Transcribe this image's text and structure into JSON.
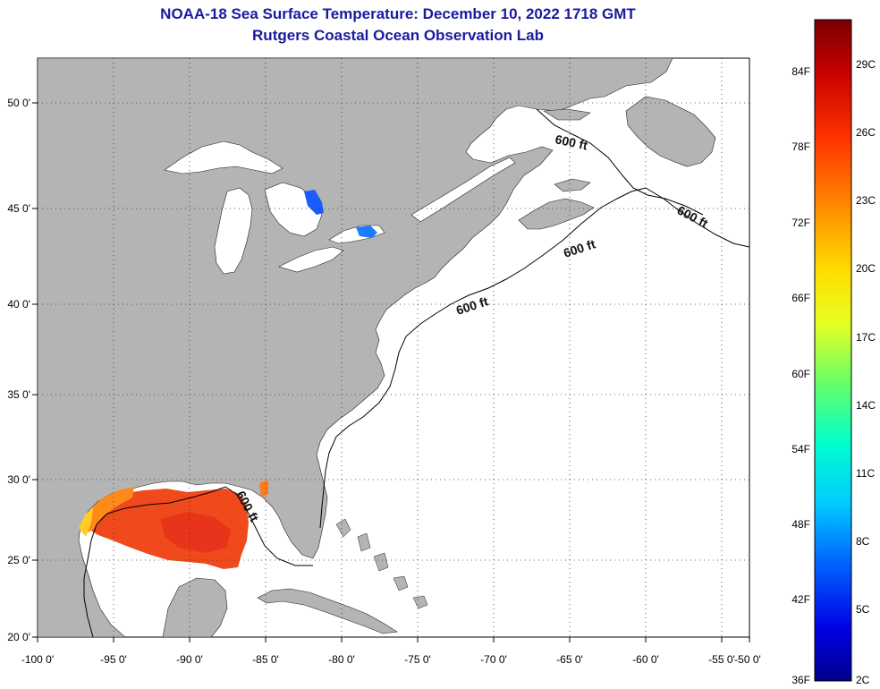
{
  "header": {
    "title": "NOAA-18 Sea Surface Temperature:  December 10, 2022 1718 GMT",
    "subtitle": "Rutgers Coastal Ocean Observation Lab"
  },
  "map": {
    "lon_range": [
      -100,
      -50
    ],
    "lat_range": [
      20,
      52.5
    ],
    "lon_ticks": [
      "-100 0'",
      "-95 0'",
      "-90 0'",
      "-85 0'",
      "-80 0'",
      "-75 0'",
      "-70 0'",
      "-65 0'",
      "-60 0'",
      "-55 0'",
      "-50 0'"
    ],
    "lat_ticks": [
      "50 0'",
      "45 0'",
      "40 0'",
      "35 0'",
      "30 0'",
      "25 0'",
      "20 0'"
    ],
    "land_color": "#b4b4b4",
    "ocean_color": "#ffffff",
    "grid": "dotted",
    "contour_label": "600 ft"
  },
  "colorbar": {
    "fahrenheit_labels": [
      "84F",
      "78F",
      "72F",
      "66F",
      "60F",
      "54F",
      "48F",
      "42F",
      "36F"
    ],
    "celsius_labels": [
      "29C",
      "26C",
      "23C",
      "20C",
      "17C",
      "14C",
      "11C",
      "8C",
      "5C",
      "2C"
    ],
    "colors": [
      "#7a0000",
      "#d40000",
      "#ff3c00",
      "#ff9900",
      "#ffe600",
      "#d8ff1a",
      "#66ff66",
      "#00ffcc",
      "#00ccff",
      "#0066ff",
      "#0000e6",
      "#00008b"
    ]
  }
}
